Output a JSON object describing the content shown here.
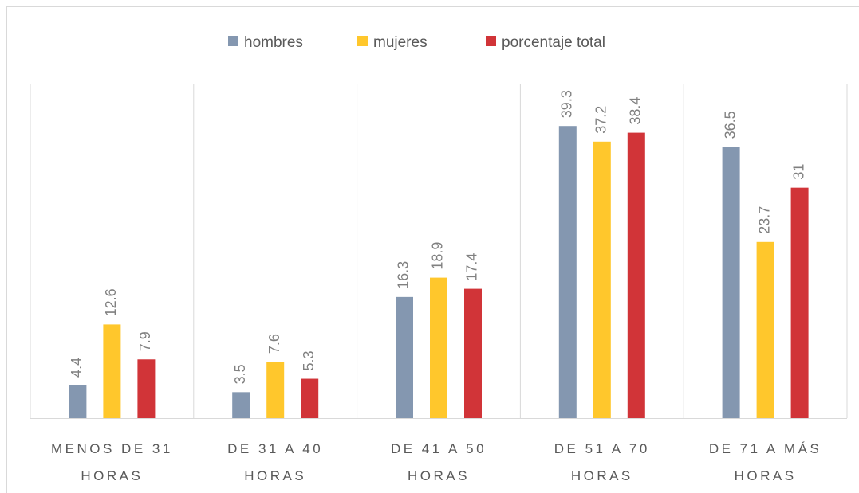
{
  "chart_data": {
    "type": "bar",
    "categories": [
      "MENOS DE 31 HORAS",
      "DE 31 A 40 HORAS",
      "DE 41 A 50 HORAS",
      "DE 51 A 70 HORAS",
      "DE 71 A MÁS HORAS"
    ],
    "series": [
      {
        "name": "hombres",
        "color": "#8497b0",
        "values": [
          4.4,
          3.5,
          16.3,
          39.3,
          36.5
        ]
      },
      {
        "name": "mujeres",
        "color": "#ffc72c",
        "values": [
          12.6,
          7.6,
          18.9,
          37.2,
          23.7
        ]
      },
      {
        "name": "porcentaje total",
        "color": "#d13438",
        "values": [
          7.9,
          5.3,
          17.4,
          38.4,
          31
        ]
      }
    ],
    "ylim": [
      0,
      45
    ],
    "legend": "top"
  }
}
